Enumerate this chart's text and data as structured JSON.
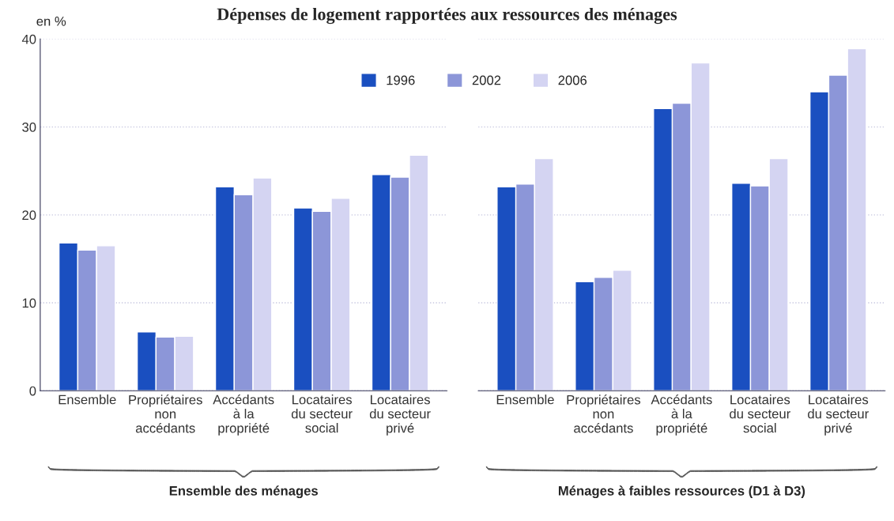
{
  "chart_data": [
    {
      "type": "bar",
      "title": "Dépenses de logement rapportées aux ressources des ménages",
      "ylabel": "en %",
      "xlabel": "Ensemble des ménages",
      "categories": [
        "Ensemble",
        "Propriétaires\nnon\naccédants",
        "Accédants\nà la\npropriété",
        "Locataires\ndu secteur\nsocial",
        "Locataires\ndu secteur\nprivé"
      ],
      "series": [
        {
          "name": "1996",
          "color": "#1a4fc0",
          "values": [
            16.8,
            6.7,
            23.2,
            20.8,
            24.6
          ]
        },
        {
          "name": "2002",
          "color": "#8c96d8",
          "values": [
            16.0,
            6.1,
            22.3,
            20.4,
            24.3
          ]
        },
        {
          "name": "2006",
          "color": "#d4d4f2",
          "values": [
            16.5,
            6.2,
            24.2,
            21.9,
            26.8
          ]
        }
      ],
      "ylim": [
        0,
        40
      ],
      "yticks": [
        0,
        10,
        20,
        30,
        40
      ],
      "grid": "y",
      "legend": "top right"
    },
    {
      "type": "bar",
      "xlabel": "Ménages à faibles ressources (D1 à D3)",
      "categories": [
        "Ensemble",
        "Propriétaires\nnon\naccédants",
        "Accédants\nà la\npropriété",
        "Locataires\ndu secteur\nsocial",
        "Locataires\ndu secteur\nprivé"
      ],
      "series": [
        {
          "color": "#1a4fc0",
          "values": [
            23.2,
            12.4,
            32.1,
            23.6,
            34.0
          ]
        },
        {
          "color": "#8c96d8",
          "values": [
            23.5,
            12.9,
            32.7,
            23.3,
            35.9
          ]
        },
        {
          "color": "#d4d4f2",
          "values": [
            26.4,
            13.7,
            37.3,
            26.4,
            38.9
          ]
        }
      ],
      "ylim": [
        0,
        40
      ],
      "yticks": [
        0,
        10,
        20,
        30,
        40
      ],
      "grid": "y",
      "tick_labels": "x"
    }
  ]
}
